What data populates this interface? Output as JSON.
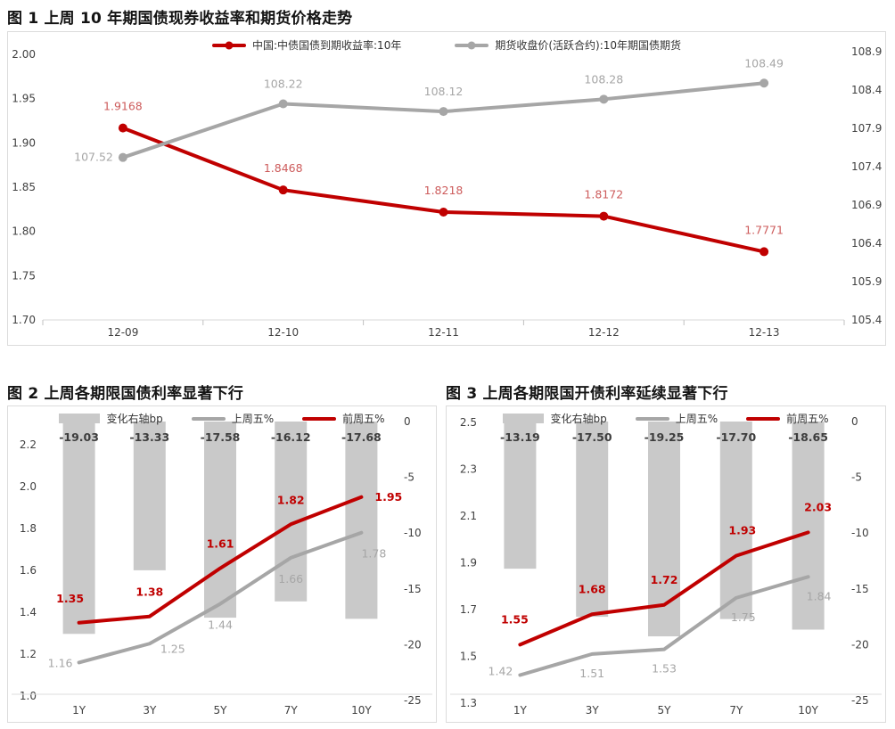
{
  "colors": {
    "red": "#c00000",
    "red_label_soft": "#cd5c5c",
    "gray": "#a6a6a6",
    "bar_fill": "#c9c9c9",
    "bar_label": "#3d3d3d",
    "axis_text": "#404040",
    "panel_border": "#dcdcdc"
  },
  "chart_data": [
    {
      "id": "fig1",
      "type": "line",
      "title": "图 1 上周 10 年期国债现券收益率和期货价格走势",
      "categories": [
        "12-09",
        "12-10",
        "12-11",
        "12-12",
        "12-13"
      ],
      "left_axis": {
        "min": 1.7,
        "max": 2.0,
        "ticks": [
          "2.00",
          "1.95",
          "1.90",
          "1.85",
          "1.80",
          "1.75",
          "1.70"
        ]
      },
      "right_axis": {
        "min": 105.4,
        "max": 108.9,
        "ticks": [
          "108.9",
          "108.4",
          "107.9",
          "107.4",
          "106.9",
          "106.4",
          "105.9",
          "105.4"
        ]
      },
      "grid": "off",
      "legend_position": "top-center",
      "legend": [
        {
          "swatch": "line",
          "marker": true,
          "color": "#c00000",
          "label": "中国:中债国债到期收益率:10年"
        },
        {
          "swatch": "line",
          "marker": true,
          "color": "#a6a6a6",
          "label": "期货收盘价(活跃合约):10年期国债期货"
        }
      ],
      "series": [
        {
          "name": "中国:中债国债到期收益率:10年",
          "axis": "left",
          "color": "#c00000",
          "marker": true,
          "values": [
            1.9168,
            1.8468,
            1.8218,
            1.8172,
            1.7771
          ],
          "labels": [
            "1.9168",
            "1.8468",
            "1.8218",
            "1.8172",
            "1.7771"
          ],
          "label_color": "#cd5c5c",
          "label_dy": -20,
          "label_overrides": {}
        },
        {
          "name": "期货收盘价(活跃合约):10年期国债期货",
          "axis": "right",
          "color": "#a6a6a6",
          "marker": true,
          "values": [
            107.52,
            108.22,
            108.12,
            108.28,
            108.49
          ],
          "labels": [
            "107.52",
            "108.22",
            "108.12",
            "108.28",
            "108.49"
          ],
          "label_color": "#a6a6a6",
          "label_dy": -18,
          "label_overrides": {
            "0": {
              "anchor": "end",
              "dx": -11,
              "dy": 4
            }
          }
        }
      ]
    },
    {
      "id": "fig2",
      "type": "bar+line",
      "title": "图 2 上周各期限国债利率显著下行",
      "categories": [
        "1Y",
        "3Y",
        "5Y",
        "7Y",
        "10Y"
      ],
      "left_axis": {
        "min": 1.0,
        "max": 2.2,
        "ticks": [
          "2.2",
          "2.0",
          "1.8",
          "1.6",
          "1.4",
          "1.2",
          "1.0"
        ]
      },
      "right_axis": {
        "min": -25,
        "max": 0,
        "ticks": [
          "0",
          "-5",
          "-10",
          "-15",
          "-20",
          "-25"
        ]
      },
      "grid": "off",
      "legend_position": "top-center",
      "legend": [
        {
          "swatch": "bar",
          "color": "#c9c9c9",
          "label": "变化右轴bp"
        },
        {
          "swatch": "line",
          "color": "#a6a6a6",
          "label": "上周五%"
        },
        {
          "swatch": "line",
          "color": "#c00000",
          "label": "前周五%"
        }
      ],
      "bars": {
        "name": "变化右轴bp",
        "axis": "right",
        "color": "#c9c9c9",
        "values": [
          -19.03,
          -13.33,
          -17.58,
          -16.12,
          -17.68
        ],
        "labels": [
          "-19.03",
          "-13.33",
          "-17.58",
          "-16.12",
          "-17.68"
        ]
      },
      "series": [
        {
          "name": "上周五%",
          "axis": "left",
          "color": "#a6a6a6",
          "marker": false,
          "values": [
            1.16,
            1.25,
            1.44,
            1.66,
            1.78
          ],
          "labels": [
            "1.16",
            "1.25",
            "1.44",
            "1.66",
            "1.78"
          ],
          "label_color": "#a6a6a6",
          "label_dy": 28,
          "label_overrides": {
            "0": {
              "dx": -21,
              "dy": 5
            },
            "1": {
              "dx": 26,
              "dy": 10
            },
            "4": {
              "dx": 14
            }
          }
        },
        {
          "name": "前周五%",
          "axis": "left",
          "color": "#c00000",
          "marker": false,
          "values": [
            1.35,
            1.38,
            1.61,
            1.82,
            1.95
          ],
          "labels": [
            "1.35",
            "1.38",
            "1.61",
            "1.82",
            "1.95"
          ],
          "label_color": "#c00000",
          "label_bold": true,
          "label_dy": -23,
          "label_overrides": {
            "0": {
              "dx": -10
            },
            "4": {
              "anchor": "start",
              "dx": 15,
              "dy": 4
            }
          }
        }
      ]
    },
    {
      "id": "fig3",
      "type": "bar+line",
      "title": "图 3 上周各期限国开债利率延续显著下行",
      "categories": [
        "1Y",
        "3Y",
        "5Y",
        "7Y",
        "10Y"
      ],
      "left_axis": {
        "min": 1.3,
        "max": 2.5,
        "ticks": [
          "2.5",
          "2.3",
          "2.1",
          "1.9",
          "1.7",
          "1.5",
          "1.3"
        ]
      },
      "right_axis": {
        "min": -25,
        "max": 0,
        "ticks": [
          "0",
          "-5",
          "-10",
          "-15",
          "-20",
          "-25"
        ]
      },
      "grid": "off",
      "legend_position": "top-center",
      "legend": [
        {
          "swatch": "bar",
          "color": "#c9c9c9",
          "label": "变化右轴bp"
        },
        {
          "swatch": "line",
          "color": "#a6a6a6",
          "label": "上周五%"
        },
        {
          "swatch": "line",
          "color": "#c00000",
          "label": "前周五%"
        }
      ],
      "bars": {
        "name": "变化右轴bp",
        "axis": "right",
        "color": "#c9c9c9",
        "values": [
          -13.19,
          -17.5,
          -19.25,
          -17.7,
          -18.65
        ],
        "labels": [
          "-13.19",
          "-17.50",
          "-19.25",
          "-17.70",
          "-18.65"
        ]
      },
      "series": [
        {
          "name": "上周五%",
          "axis": "left",
          "color": "#a6a6a6",
          "marker": false,
          "values": [
            1.42,
            1.51,
            1.53,
            1.75,
            1.84
          ],
          "labels": [
            "1.42",
            "1.51",
            "1.53",
            "1.75",
            "1.84"
          ],
          "label_color": "#a6a6a6",
          "label_dy": 26,
          "label_overrides": {
            "0": {
              "anchor": "end",
              "dx": -8,
              "dy": 0
            },
            "3": {
              "dx": 8
            },
            "4": {
              "dx": 12
            }
          }
        },
        {
          "name": "前周五%",
          "axis": "left",
          "color": "#c00000",
          "marker": false,
          "values": [
            1.55,
            1.68,
            1.72,
            1.93,
            2.03
          ],
          "labels": [
            "1.55",
            "1.68",
            "1.72",
            "1.93",
            "2.03"
          ],
          "label_color": "#c00000",
          "label_bold": true,
          "label_dy": -24,
          "label_overrides": {
            "0": {
              "dx": -6
            },
            "3": {
              "dx": 7
            },
            "4": {
              "dx": 11
            }
          }
        }
      ]
    }
  ]
}
